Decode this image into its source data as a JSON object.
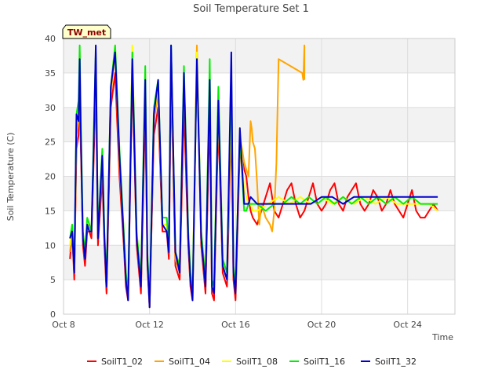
{
  "chart_data": {
    "type": "line",
    "title": "Soil Temperature Set 1",
    "xlabel": "Time",
    "ylabel": "Soil Temperature (C)",
    "badge": "TW_met",
    "xlim": [
      8,
      26.2
    ],
    "ylim": [
      0,
      40
    ],
    "yticks": [
      0,
      5,
      10,
      15,
      20,
      25,
      30,
      35,
      40
    ],
    "xticks": [
      {
        "value": 8,
        "label": "Oct 8"
      },
      {
        "value": 12,
        "label": "Oct 12"
      },
      {
        "value": 16,
        "label": "Oct 16"
      },
      {
        "value": 20,
        "label": "Oct 20"
      },
      {
        "value": 24,
        "label": "Oct 24"
      }
    ],
    "grid": true,
    "legend_position": "bottom",
    "series": [
      {
        "name": "SoilT1_02",
        "color": "#ff0000",
        "x": [
          8.3,
          8.4,
          8.5,
          8.6,
          8.7,
          8.75,
          8.8,
          8.9,
          9.0,
          9.1,
          9.2,
          9.3,
          9.4,
          9.5,
          9.6,
          9.8,
          9.9,
          10.0,
          10.2,
          10.4,
          10.6,
          10.8,
          10.9,
          11.0,
          11.2,
          11.4,
          11.6,
          11.8,
          11.9,
          12.0,
          12.2,
          12.4,
          12.6,
          12.8,
          12.9,
          13.0,
          13.2,
          13.4,
          13.6,
          13.8,
          13.9,
          14.0,
          14.2,
          14.4,
          14.6,
          14.8,
          14.9,
          15.0,
          15.2,
          15.4,
          15.6,
          15.8,
          15.9,
          16.0,
          16.2,
          16.4,
          16.5,
          16.6,
          16.7,
          16.8,
          17.0,
          17.2,
          17.4,
          17.6,
          17.8,
          18.0,
          18.2,
          18.4,
          18.6,
          18.8,
          19.0,
          19.2,
          19.4,
          19.6,
          19.8,
          20.0,
          20.2,
          20.4,
          20.6,
          20.8,
          21.0,
          21.2,
          21.4,
          21.6,
          21.8,
          22.0,
          22.2,
          22.4,
          22.6,
          22.8,
          23.0,
          23.2,
          23.4,
          23.6,
          23.8,
          24.0,
          24.2,
          24.4,
          24.6,
          24.8,
          25.0,
          25.2,
          25.4
        ],
        "y": [
          8,
          12,
          5,
          24,
          26,
          36,
          25,
          10,
          7,
          12,
          12,
          11,
          22,
          34,
          10,
          20,
          10,
          3,
          30,
          35,
          20,
          10,
          4,
          2,
          35,
          10,
          3,
          30,
          7,
          1,
          26,
          30,
          12,
          12,
          8,
          35,
          7,
          5,
          30,
          10,
          4,
          2,
          38,
          10,
          3,
          30,
          3,
          2,
          28,
          6,
          4,
          28,
          5,
          2,
          24,
          21,
          20,
          17,
          15,
          14,
          13,
          15,
          17,
          19,
          15,
          14,
          16,
          18,
          19,
          16,
          14,
          15,
          17,
          19,
          16,
          15,
          16,
          18,
          19,
          16,
          15,
          17,
          18,
          19,
          16,
          15,
          16,
          18,
          17,
          15,
          16,
          18,
          16,
          15,
          14,
          16,
          18,
          15,
          14,
          14,
          15,
          16,
          15
        ]
      },
      {
        "name": "SoilT1_04",
        "color": "#ffa500",
        "x": [
          8.3,
          8.4,
          8.5,
          8.6,
          8.7,
          8.75,
          8.8,
          8.9,
          9.0,
          9.1,
          9.2,
          9.3,
          9.4,
          9.5,
          9.6,
          9.8,
          9.9,
          10.0,
          10.2,
          10.4,
          10.6,
          10.8,
          10.9,
          11.0,
          11.2,
          11.4,
          11.6,
          11.8,
          11.9,
          12.0,
          12.2,
          12.4,
          12.6,
          12.8,
          12.9,
          13.0,
          13.2,
          13.4,
          13.6,
          13.8,
          13.9,
          14.0,
          14.2,
          14.4,
          14.6,
          14.8,
          14.9,
          15.0,
          15.2,
          15.4,
          15.6,
          15.8,
          15.9,
          16.0,
          16.2,
          16.4,
          16.5,
          16.6,
          16.7,
          16.75,
          16.8,
          16.9,
          17.0,
          17.1,
          17.2,
          17.4,
          17.6,
          17.7,
          17.8,
          17.9,
          18.0,
          19.1,
          19.15,
          19.2,
          19.2
        ],
        "y": [
          9,
          12,
          6,
          26,
          28,
          38,
          27,
          11,
          8,
          13,
          12,
          12,
          24,
          36,
          11,
          22,
          11,
          4,
          32,
          38,
          22,
          11,
          5,
          3,
          38,
          11,
          4,
          33,
          8,
          1,
          28,
          32,
          13,
          13,
          9,
          37,
          8,
          6,
          34,
          11,
          5,
          3,
          39,
          11,
          4,
          34,
          4,
          3,
          30,
          7,
          5,
          30,
          6,
          3,
          26,
          22,
          21,
          20,
          28,
          27,
          25,
          24,
          19,
          13,
          16,
          14,
          13,
          12,
          15,
          22,
          37,
          35,
          34,
          39,
          34
        ]
      },
      {
        "name": "SoilT1_08",
        "color": "#ffff00",
        "x": [
          8.3,
          8.4,
          8.5,
          8.6,
          8.7,
          8.75,
          8.8,
          8.9,
          9.0,
          9.1,
          9.2,
          9.3,
          9.4,
          9.5,
          9.6,
          9.8,
          9.9,
          10.0,
          10.2,
          10.4,
          10.6,
          10.8,
          10.9,
          11.0,
          11.2,
          11.4,
          11.6,
          11.8,
          11.9,
          12.0,
          12.2,
          12.4,
          12.6,
          12.8,
          12.9,
          13.0,
          13.2,
          13.4,
          13.6,
          13.8,
          13.9,
          14.0,
          14.2,
          14.4,
          14.6,
          14.8,
          14.9,
          15.0,
          15.2,
          15.4,
          15.6,
          15.8,
          15.9,
          16.0,
          16.2,
          16.4,
          16.5,
          16.6,
          16.7,
          16.8,
          17.0,
          17.5,
          18.0,
          18.5,
          19.0,
          19.5,
          20.0,
          20.5,
          21.0,
          21.5,
          22.0,
          22.5,
          23.0,
          23.5,
          24.0,
          24.5,
          25.0,
          25.4
        ],
        "y": [
          10,
          13,
          7,
          28,
          30,
          37,
          28,
          12,
          9,
          13,
          13,
          12,
          25,
          38,
          12,
          23,
          12,
          5,
          33,
          39,
          23,
          12,
          6,
          3,
          39,
          12,
          5,
          35,
          9,
          2,
          29,
          33,
          13,
          13,
          10,
          38,
          9,
          7,
          35,
          12,
          6,
          3,
          38,
          12,
          5,
          35,
          5,
          4,
          31,
          8,
          6,
          33,
          7,
          4,
          27,
          18,
          17,
          16,
          16,
          15,
          15,
          16,
          17,
          16,
          17,
          16,
          17,
          16,
          17,
          16,
          17,
          16,
          17,
          16,
          16,
          16,
          16,
          15
        ]
      },
      {
        "name": "SoilT1_16",
        "color": "#00ee00",
        "x": [
          8.3,
          8.4,
          8.5,
          8.6,
          8.7,
          8.75,
          8.8,
          8.9,
          9.0,
          9.1,
          9.2,
          9.3,
          9.4,
          9.5,
          9.6,
          9.8,
          9.9,
          10.0,
          10.2,
          10.4,
          10.6,
          10.8,
          10.9,
          11.0,
          11.2,
          11.4,
          11.6,
          11.8,
          11.9,
          12.0,
          12.2,
          12.4,
          12.6,
          12.8,
          12.9,
          13.0,
          13.2,
          13.4,
          13.6,
          13.8,
          13.9,
          14.0,
          14.2,
          14.4,
          14.6,
          14.8,
          14.9,
          15.0,
          15.2,
          15.4,
          15.6,
          15.8,
          15.9,
          16.0,
          16.2,
          16.4,
          16.5,
          16.6,
          16.7,
          16.8,
          17.0,
          17.4,
          17.8,
          18.2,
          18.6,
          19.0,
          19.4,
          19.8,
          20.2,
          20.6,
          21.0,
          21.4,
          21.8,
          22.2,
          22.6,
          23.0,
          23.4,
          23.8,
          24.2,
          24.6,
          25.0,
          25.4
        ],
        "y": [
          11,
          13,
          7,
          29,
          31,
          39,
          29,
          12,
          9,
          14,
          13,
          12,
          26,
          38,
          12,
          24,
          12,
          5,
          33,
          39,
          24,
          12,
          6,
          3,
          38,
          12,
          5,
          36,
          9,
          2,
          30,
          34,
          14,
          14,
          10,
          39,
          9,
          7,
          36,
          12,
          6,
          3,
          37,
          12,
          5,
          37,
          5,
          4,
          33,
          8,
          6,
          35,
          7,
          4,
          26,
          15,
          15,
          16,
          16,
          16,
          16,
          15,
          16,
          16,
          17,
          16,
          17,
          16,
          17,
          16,
          17,
          16,
          17,
          16,
          17,
          16,
          17,
          16,
          17,
          16,
          16,
          16
        ]
      },
      {
        "name": "SoilT1_32",
        "color": "#0000cc",
        "x": [
          8.3,
          8.4,
          8.5,
          8.6,
          8.7,
          8.75,
          8.8,
          8.9,
          9.0,
          9.1,
          9.2,
          9.3,
          9.4,
          9.5,
          9.6,
          9.8,
          9.9,
          10.0,
          10.2,
          10.4,
          10.6,
          10.8,
          10.9,
          11.0,
          11.2,
          11.4,
          11.6,
          11.8,
          11.9,
          12.0,
          12.2,
          12.4,
          12.6,
          12.8,
          12.9,
          13.0,
          13.2,
          13.4,
          13.6,
          13.8,
          13.9,
          14.0,
          14.2,
          14.4,
          14.6,
          14.8,
          14.9,
          15.0,
          15.2,
          15.4,
          15.6,
          15.8,
          15.9,
          16.0,
          16.2,
          16.4,
          16.5,
          16.6,
          16.7,
          17.0,
          17.5,
          18.0,
          18.5,
          19.0,
          19.5,
          20.0,
          20.5,
          21.0,
          21.5,
          22.0,
          22.5,
          23.0,
          23.5,
          24.0,
          24.5,
          25.0,
          25.4
        ],
        "y": [
          11,
          12,
          6,
          29,
          28,
          37,
          27,
          11,
          8,
          13,
          12,
          12,
          24,
          39,
          11,
          23,
          11,
          4,
          33,
          38,
          23,
          11,
          5,
          2,
          37,
          11,
          4,
          34,
          8,
          1,
          29,
          34,
          13,
          12,
          9,
          39,
          9,
          6,
          35,
          11,
          5,
          2,
          37,
          11,
          4,
          34,
          4,
          3,
          31,
          7,
          5,
          38,
          6,
          3,
          27,
          16,
          16,
          16,
          17,
          16,
          16,
          16,
          16,
          16,
          16,
          17,
          17,
          16,
          17,
          17,
          17,
          17,
          17,
          17,
          17,
          17,
          17
        ]
      }
    ]
  }
}
